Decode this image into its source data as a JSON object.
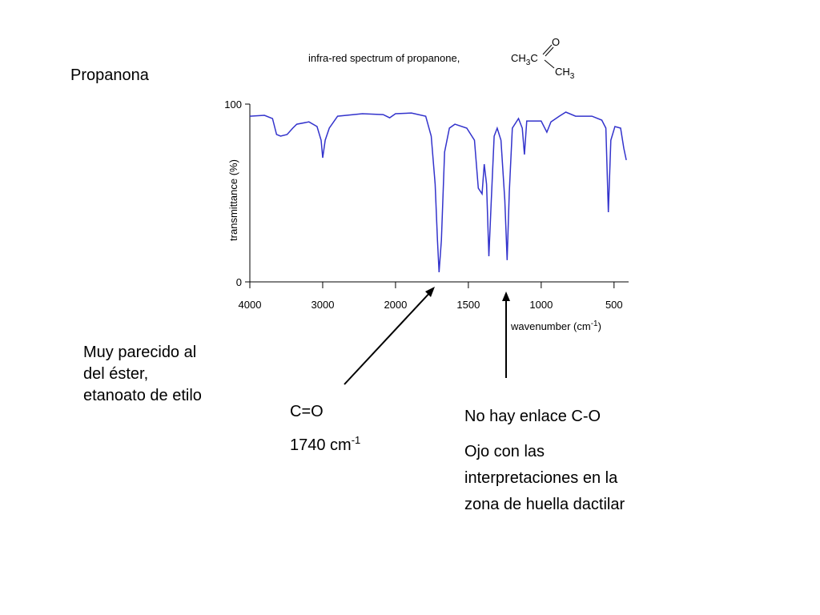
{
  "slide": {
    "heading": "Propanona",
    "note": [
      "Muy parecido al",
      "del éster,",
      "etanoato de etilo"
    ],
    "carbonyl": {
      "label": "C=O",
      "wavenumber": {
        "text": "1740 cm",
        "sup": "-1"
      }
    },
    "remark": {
      "title": "No hay enlace C-O",
      "lines": [
        "Ojo con las",
        "interpretaciones en la",
        "zona de huella dactilar"
      ]
    }
  },
  "chart_data": {
    "type": "line",
    "title": "infra-red spectrum of propanone,",
    "formula": [
      "CH",
      "3",
      "C",
      "O",
      "CH",
      "3"
    ],
    "x_label": {
      "text": "wavenumber (cm",
      "sup": "-1",
      "after": ")"
    },
    "y_label": "transmittance (%)",
    "color": "#3333cc",
    "xlim": [
      4000,
      400
    ],
    "xticks": [
      4000,
      3000,
      2000,
      1500,
      1000,
      500
    ],
    "ylim": [
      0,
      100
    ],
    "yticks": [
      0,
      100
    ],
    "x": [
      4000,
      3800,
      3689,
      3633,
      3578,
      3489,
      3411,
      3356,
      3189,
      3078,
      3022,
      3000,
      2966,
      2909,
      2795,
      2455,
      2170,
      2080,
      2000,
      1891,
      1793,
      1755,
      1728,
      1712,
      1701,
      1685,
      1663,
      1630,
      1592,
      1511,
      1458,
      1432,
      1406,
      1391,
      1375,
      1359,
      1344,
      1323,
      1302,
      1276,
      1250,
      1234,
      1219,
      1198,
      1156,
      1130,
      1115,
      1099,
      1052,
      1000,
      961,
      933,
      876,
      831,
      764,
      652,
      584,
      556,
      539,
      522,
      494,
      455,
      433,
      416
    ],
    "values": [
      93.2,
      93.7,
      91.9,
      82.9,
      82,
      82.9,
      86.5,
      88.7,
      90,
      87.4,
      79.7,
      69.8,
      79.7,
      86.5,
      93.2,
      94.6,
      94.1,
      92.3,
      94.6,
      95,
      93.2,
      82,
      55,
      23.4,
      5.4,
      23.4,
      73,
      86.5,
      88.7,
      86.5,
      79.7,
      52.7,
      49.5,
      66.2,
      55,
      14.4,
      43.7,
      82,
      86.5,
      79.7,
      45.9,
      12.2,
      50.5,
      86.5,
      91.9,
      86.5,
      71.6,
      90.5,
      90.5,
      90.5,
      84.2,
      90,
      93.2,
      95.5,
      93.2,
      93.2,
      91,
      86.5,
      39.2,
      79.7,
      87.4,
      86.5,
      75.2,
      68.5
    ]
  }
}
